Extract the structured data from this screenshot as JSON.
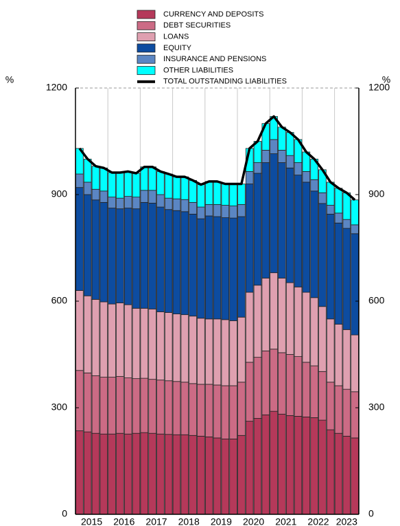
{
  "chart_data": {
    "type": "stacked_bar",
    "y_unit_left": "%",
    "y_unit_right": "%",
    "categories": [
      null,
      "2015",
      null,
      null,
      null,
      "2016",
      null,
      null,
      null,
      "2017",
      null,
      null,
      null,
      "2018",
      null,
      null,
      null,
      "2019",
      null,
      null,
      null,
      "2020",
      null,
      null,
      null,
      "2021",
      null,
      null,
      null,
      "2022",
      null,
      null,
      null,
      "2023",
      null
    ],
    "series": [
      {
        "name": "CURRENCY AND DEPOSITS",
        "color": "#b5395a",
        "values": [
          235,
          232,
          228,
          226,
          226,
          228,
          226,
          228,
          230,
          228,
          226,
          225,
          224,
          224,
          222,
          220,
          218,
          215,
          212,
          212,
          222,
          262,
          270,
          280,
          290,
          282,
          278,
          276,
          274,
          272,
          265,
          238,
          228,
          220,
          215
        ]
      },
      {
        "name": "DEBT SECURITIES",
        "color": "#cc6b85",
        "values": [
          170,
          166,
          162,
          160,
          160,
          160,
          158,
          154,
          153,
          152,
          152,
          151,
          150,
          148,
          146,
          146,
          148,
          149,
          150,
          150,
          150,
          166,
          172,
          180,
          175,
          173,
          172,
          168,
          154,
          146,
          137,
          134,
          134,
          132,
          130
        ]
      },
      {
        "name": "LOANS",
        "color": "#dfa0b0",
        "values": [
          225,
          217,
          215,
          212,
          206,
          207,
          206,
          198,
          197,
          198,
          192,
          192,
          190,
          190,
          190,
          186,
          184,
          186,
          186,
          183,
          183,
          197,
          203,
          205,
          215,
          210,
          202,
          196,
          197,
          192,
          183,
          178,
          173,
          168,
          160
        ]
      },
      {
        "name": "EQUITY",
        "color": "#0d4ca0",
        "values": [
          290,
          285,
          280,
          280,
          270,
          265,
          272,
          280,
          298,
          298,
          295,
          290,
          291,
          290,
          287,
          280,
          290,
          288,
          287,
          289,
          283,
          305,
          315,
          325,
          335,
          325,
          323,
          315,
          310,
          300,
          290,
          295,
          285,
          285,
          285
        ]
      },
      {
        "name": "INSURANCE AND PENSIONS",
        "color": "#5b86c3",
        "values": [
          38,
          35,
          30,
          32,
          31,
          30,
          33,
          33,
          34,
          36,
          35,
          32,
          33,
          34,
          33,
          33,
          32,
          34,
          35,
          34,
          34,
          35,
          30,
          35,
          40,
          35,
          35,
          35,
          30,
          32,
          30,
          25,
          28,
          25,
          25
        ]
      },
      {
        "name": "OTHER LIABILITIES",
        "color": "#00ffff",
        "values": [
          72,
          65,
          65,
          65,
          69,
          72,
          70,
          67,
          66,
          66,
          65,
          68,
          62,
          64,
          62,
          63,
          65,
          65,
          60,
          62,
          58,
          65,
          60,
          75,
          65,
          65,
          65,
          65,
          55,
          58,
          65,
          65,
          70,
          75,
          70
        ]
      },
      {
        "name": "TOTAL OUTSTANDING LIABILITIES",
        "color": "#000000",
        "type": "line",
        "values": [
          1030,
          1000,
          980,
          975,
          962,
          962,
          965,
          960,
          978,
          978,
          965,
          958,
          950,
          950,
          940,
          928,
          937,
          937,
          930,
          930,
          930,
          1030,
          1050,
          1100,
          1120,
          1090,
          1075,
          1055,
          1020,
          1000,
          970,
          935,
          918,
          905,
          885
        ]
      }
    ],
    "ylim": [
      0,
      1200
    ],
    "yticks": [
      0,
      300,
      600,
      900,
      1200
    ],
    "y2lim": [
      0,
      1200
    ],
    "y2ticks": [
      0,
      300,
      600,
      900,
      1200
    ],
    "legend": "top"
  }
}
